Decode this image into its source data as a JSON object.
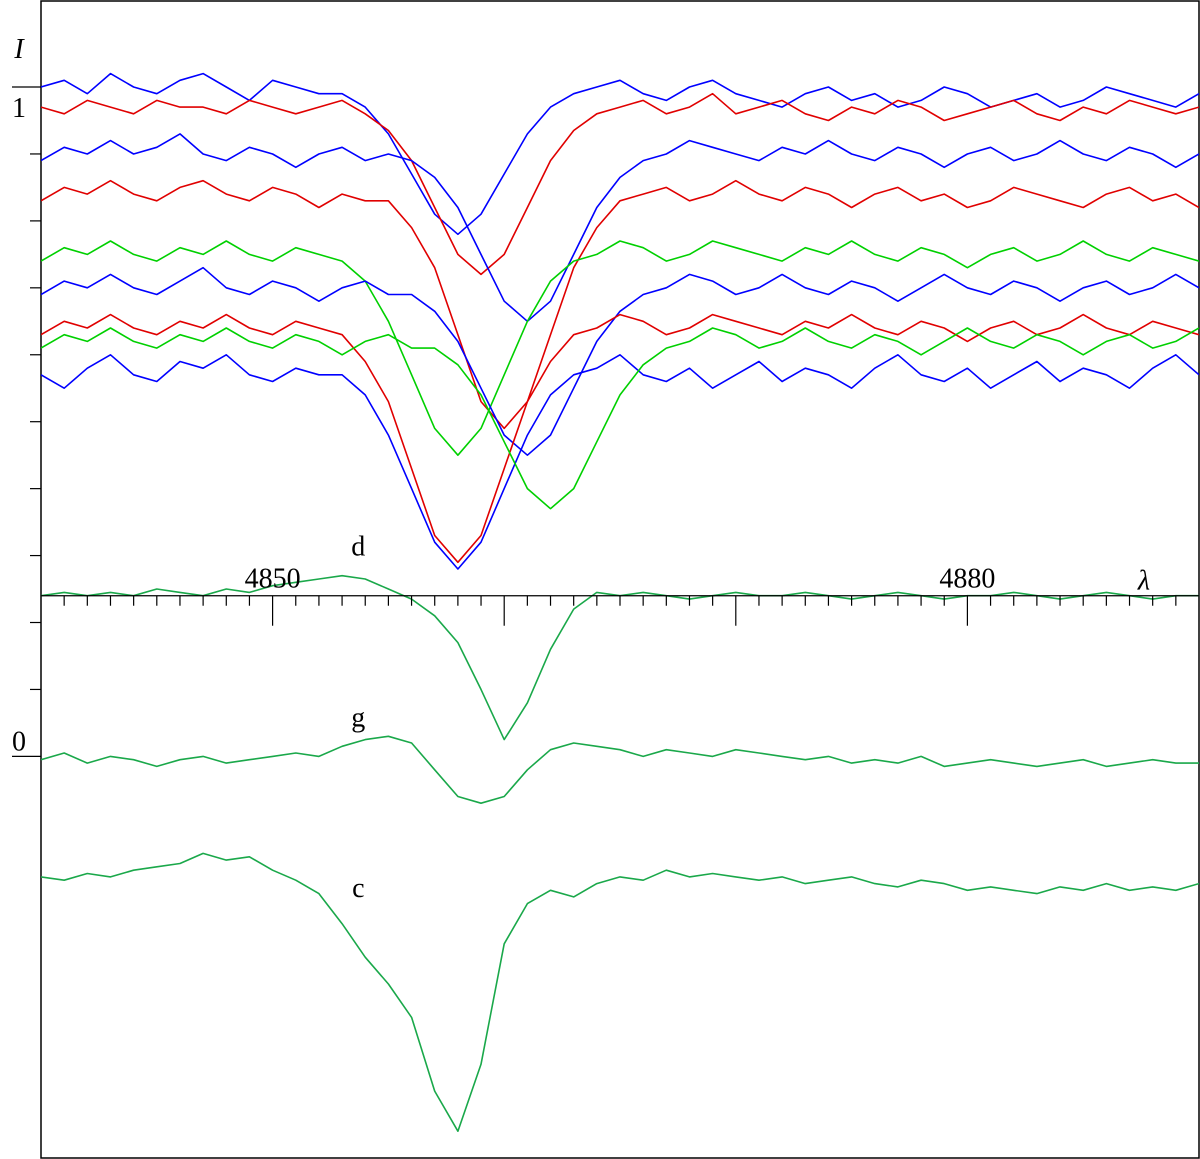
{
  "chart_data": {
    "type": "line",
    "x_label": "λ",
    "y_label": "I",
    "xlim": [
      4840,
      4890
    ],
    "ylim": [
      -0.6,
      1.13
    ],
    "xticks": [
      4850,
      4880
    ],
    "xticks_long": [
      4860,
      4870
    ],
    "xticks_minor": [
      4841,
      4842,
      4843,
      4844,
      4845,
      4846,
      4847,
      4848,
      4849,
      4851,
      4852,
      4853,
      4854,
      4855,
      4856,
      4857,
      4858,
      4859,
      4861,
      4862,
      4863,
      4864,
      4865,
      4866,
      4867,
      4868,
      4869,
      4871,
      4872,
      4873,
      4874,
      4875,
      4876,
      4877,
      4878,
      4879,
      4881,
      4882,
      4883,
      4884,
      4885,
      4886,
      4887,
      4888,
      4889
    ],
    "yticks": [
      0,
      1
    ],
    "yticks_minor": [
      0.1,
      0.2,
      0.3,
      0.4,
      0.5,
      0.6,
      0.7,
      0.8,
      0.9
    ],
    "x_axis_at": 0.24,
    "x": [
      4840,
      4841,
      4842,
      4843,
      4844,
      4845,
      4846,
      4847,
      4848,
      4849,
      4850,
      4851,
      4852,
      4853,
      4854,
      4855,
      4856,
      4857,
      4858,
      4859,
      4860,
      4861,
      4862,
      4863,
      4864,
      4865,
      4866,
      4867,
      4868,
      4869,
      4870,
      4871,
      4872,
      4873,
      4874,
      4875,
      4876,
      4877,
      4878,
      4879,
      4880,
      4881,
      4882,
      4883,
      4884,
      4885,
      4886,
      4887,
      4888,
      4889,
      4890
    ],
    "series": [
      {
        "color": "#0000ff",
        "values": [
          1.0,
          1.01,
          0.99,
          1.02,
          1.0,
          0.99,
          1.01,
          1.02,
          1.0,
          0.98,
          1.01,
          1.0,
          0.99,
          0.99,
          0.97,
          0.93,
          0.87,
          0.81,
          0.78,
          0.81,
          0.87,
          0.93,
          0.97,
          0.99,
          1.0,
          1.01,
          0.99,
          0.98,
          1.0,
          1.01,
          0.99,
          0.98,
          0.97,
          0.99,
          1.0,
          0.98,
          0.99,
          0.97,
          0.98,
          1.0,
          0.99,
          0.97,
          0.98,
          0.99,
          0.97,
          0.98,
          1.0,
          0.99,
          0.98,
          0.97,
          0.99
        ]
      },
      {
        "color": "#e00000",
        "values": [
          0.97,
          0.96,
          0.98,
          0.97,
          0.96,
          0.98,
          0.97,
          0.97,
          0.96,
          0.98,
          0.97,
          0.96,
          0.97,
          0.98,
          0.96,
          0.935,
          0.89,
          0.82,
          0.75,
          0.72,
          0.75,
          0.82,
          0.89,
          0.935,
          0.96,
          0.97,
          0.98,
          0.96,
          0.97,
          0.99,
          0.96,
          0.97,
          0.98,
          0.96,
          0.95,
          0.97,
          0.96,
          0.98,
          0.97,
          0.95,
          0.96,
          0.97,
          0.98,
          0.96,
          0.95,
          0.97,
          0.96,
          0.98,
          0.97,
          0.96,
          0.97
        ]
      },
      {
        "color": "#0000ff",
        "values": [
          0.89,
          0.91,
          0.9,
          0.92,
          0.9,
          0.91,
          0.93,
          0.9,
          0.89,
          0.91,
          0.9,
          0.88,
          0.9,
          0.91,
          0.89,
          0.9,
          0.89,
          0.865,
          0.82,
          0.75,
          0.68,
          0.65,
          0.68,
          0.75,
          0.82,
          0.865,
          0.89,
          0.9,
          0.92,
          0.91,
          0.9,
          0.89,
          0.91,
          0.9,
          0.92,
          0.9,
          0.89,
          0.91,
          0.9,
          0.88,
          0.9,
          0.91,
          0.89,
          0.9,
          0.92,
          0.9,
          0.89,
          0.91,
          0.9,
          0.88,
          0.9
        ]
      },
      {
        "color": "#e00000",
        "values": [
          0.83,
          0.85,
          0.84,
          0.86,
          0.84,
          0.83,
          0.85,
          0.86,
          0.84,
          0.83,
          0.85,
          0.84,
          0.82,
          0.84,
          0.83,
          0.83,
          0.79,
          0.73,
          0.63,
          0.53,
          0.49,
          0.53,
          0.63,
          0.73,
          0.79,
          0.83,
          0.84,
          0.85,
          0.83,
          0.84,
          0.86,
          0.84,
          0.83,
          0.85,
          0.84,
          0.82,
          0.84,
          0.85,
          0.83,
          0.84,
          0.82,
          0.83,
          0.85,
          0.84,
          0.83,
          0.82,
          0.84,
          0.85,
          0.83,
          0.84,
          0.82
        ]
      },
      {
        "color": "#00d000",
        "values": [
          0.74,
          0.76,
          0.75,
          0.77,
          0.75,
          0.74,
          0.76,
          0.75,
          0.77,
          0.75,
          0.74,
          0.76,
          0.75,
          0.74,
          0.71,
          0.65,
          0.57,
          0.49,
          0.45,
          0.49,
          0.57,
          0.65,
          0.71,
          0.74,
          0.75,
          0.77,
          0.76,
          0.74,
          0.75,
          0.77,
          0.76,
          0.75,
          0.74,
          0.76,
          0.75,
          0.77,
          0.75,
          0.74,
          0.76,
          0.75,
          0.73,
          0.75,
          0.76,
          0.74,
          0.75,
          0.77,
          0.75,
          0.74,
          0.76,
          0.75,
          0.74
        ]
      },
      {
        "color": "#0000ff",
        "values": [
          0.69,
          0.71,
          0.7,
          0.72,
          0.7,
          0.69,
          0.71,
          0.73,
          0.7,
          0.69,
          0.71,
          0.7,
          0.68,
          0.7,
          0.71,
          0.69,
          0.69,
          0.665,
          0.62,
          0.55,
          0.48,
          0.45,
          0.48,
          0.55,
          0.62,
          0.665,
          0.69,
          0.7,
          0.72,
          0.71,
          0.69,
          0.7,
          0.72,
          0.7,
          0.69,
          0.71,
          0.7,
          0.68,
          0.7,
          0.72,
          0.7,
          0.69,
          0.71,
          0.7,
          0.68,
          0.7,
          0.71,
          0.69,
          0.7,
          0.72,
          0.7
        ]
      },
      {
        "color": "#e00000",
        "values": [
          0.63,
          0.65,
          0.64,
          0.66,
          0.64,
          0.63,
          0.65,
          0.64,
          0.66,
          0.64,
          0.63,
          0.65,
          0.64,
          0.63,
          0.59,
          0.53,
          0.43,
          0.33,
          0.29,
          0.33,
          0.43,
          0.53,
          0.59,
          0.63,
          0.64,
          0.66,
          0.65,
          0.63,
          0.64,
          0.66,
          0.65,
          0.64,
          0.63,
          0.65,
          0.64,
          0.66,
          0.64,
          0.63,
          0.65,
          0.64,
          0.62,
          0.64,
          0.65,
          0.63,
          0.64,
          0.66,
          0.64,
          0.63,
          0.65,
          0.64,
          0.63
        ]
      },
      {
        "color": "#0000ff",
        "values": [
          0.57,
          0.55,
          0.58,
          0.6,
          0.57,
          0.56,
          0.59,
          0.58,
          0.6,
          0.57,
          0.56,
          0.58,
          0.57,
          0.57,
          0.54,
          0.48,
          0.4,
          0.32,
          0.28,
          0.32,
          0.4,
          0.48,
          0.54,
          0.57,
          0.58,
          0.6,
          0.57,
          0.56,
          0.58,
          0.55,
          0.57,
          0.59,
          0.56,
          0.58,
          0.57,
          0.55,
          0.58,
          0.6,
          0.57,
          0.56,
          0.58,
          0.55,
          0.57,
          0.59,
          0.56,
          0.58,
          0.57,
          0.55,
          0.58,
          0.6,
          0.57
        ]
      },
      {
        "color": "#00d000",
        "values": [
          0.61,
          0.63,
          0.62,
          0.64,
          0.62,
          0.61,
          0.63,
          0.62,
          0.64,
          0.62,
          0.61,
          0.63,
          0.62,
          0.6,
          0.62,
          0.63,
          0.61,
          0.61,
          0.585,
          0.54,
          0.47,
          0.4,
          0.37,
          0.4,
          0.47,
          0.54,
          0.585,
          0.61,
          0.62,
          0.64,
          0.63,
          0.61,
          0.62,
          0.64,
          0.62,
          0.61,
          0.63,
          0.62,
          0.6,
          0.62,
          0.64,
          0.62,
          0.61,
          0.63,
          0.62,
          0.6,
          0.62,
          0.63,
          0.61,
          0.62,
          0.64
        ]
      },
      {
        "name": "d",
        "color": "#1aa84a",
        "values": [
          0.24,
          0.245,
          0.24,
          0.245,
          0.24,
          0.25,
          0.245,
          0.24,
          0.25,
          0.245,
          0.255,
          0.26,
          0.265,
          0.27,
          0.265,
          0.25,
          0.235,
          0.21,
          0.17,
          0.1,
          0.025,
          0.08,
          0.16,
          0.22,
          0.245,
          0.24,
          0.245,
          0.24,
          0.235,
          0.24,
          0.245,
          0.24,
          0.24,
          0.245,
          0.24,
          0.235,
          0.24,
          0.245,
          0.24,
          0.235,
          0.24,
          0.24,
          0.245,
          0.24,
          0.235,
          0.24,
          0.245,
          0.24,
          0.235,
          0.24,
          0.24
        ]
      },
      {
        "name": "g",
        "color": "#1aa84a",
        "values": [
          -0.005,
          0.005,
          -0.01,
          0,
          -0.005,
          -0.015,
          -0.005,
          0,
          -0.01,
          -0.005,
          0,
          0.005,
          0,
          0.015,
          0.025,
          0.03,
          0.02,
          -0.02,
          -0.06,
          -0.07,
          -0.06,
          -0.02,
          0.01,
          0.02,
          0.015,
          0.01,
          0,
          0.01,
          0.005,
          0,
          0.01,
          0.005,
          0,
          -0.005,
          0,
          -0.01,
          -0.005,
          -0.01,
          0,
          -0.015,
          -0.01,
          -0.005,
          -0.01,
          -0.015,
          -0.01,
          -0.005,
          -0.015,
          -0.01,
          -0.005,
          -0.01,
          -0.01
        ]
      },
      {
        "name": "c",
        "color": "#1aa84a",
        "values": [
          -0.18,
          -0.185,
          -0.175,
          -0.18,
          -0.17,
          -0.165,
          -0.16,
          -0.145,
          -0.155,
          -0.15,
          -0.17,
          -0.185,
          -0.205,
          -0.25,
          -0.3,
          -0.34,
          -0.39,
          -0.5,
          -0.56,
          -0.46,
          -0.28,
          -0.22,
          -0.2,
          -0.21,
          -0.19,
          -0.18,
          -0.185,
          -0.17,
          -0.18,
          -0.175,
          -0.18,
          -0.185,
          -0.18,
          -0.19,
          -0.185,
          -0.18,
          -0.19,
          -0.195,
          -0.185,
          -0.19,
          -0.2,
          -0.195,
          -0.2,
          -0.205,
          -0.195,
          -0.2,
          -0.19,
          -0.2,
          -0.195,
          -0.2,
          -0.19
        ]
      }
    ],
    "annotations": [
      {
        "text": "d",
        "x": 4853.7,
        "y": 0.3
      },
      {
        "text": "g",
        "x": 4853.7,
        "y": 0.045
      },
      {
        "text": "c",
        "x": 4853.7,
        "y": -0.21
      }
    ]
  }
}
